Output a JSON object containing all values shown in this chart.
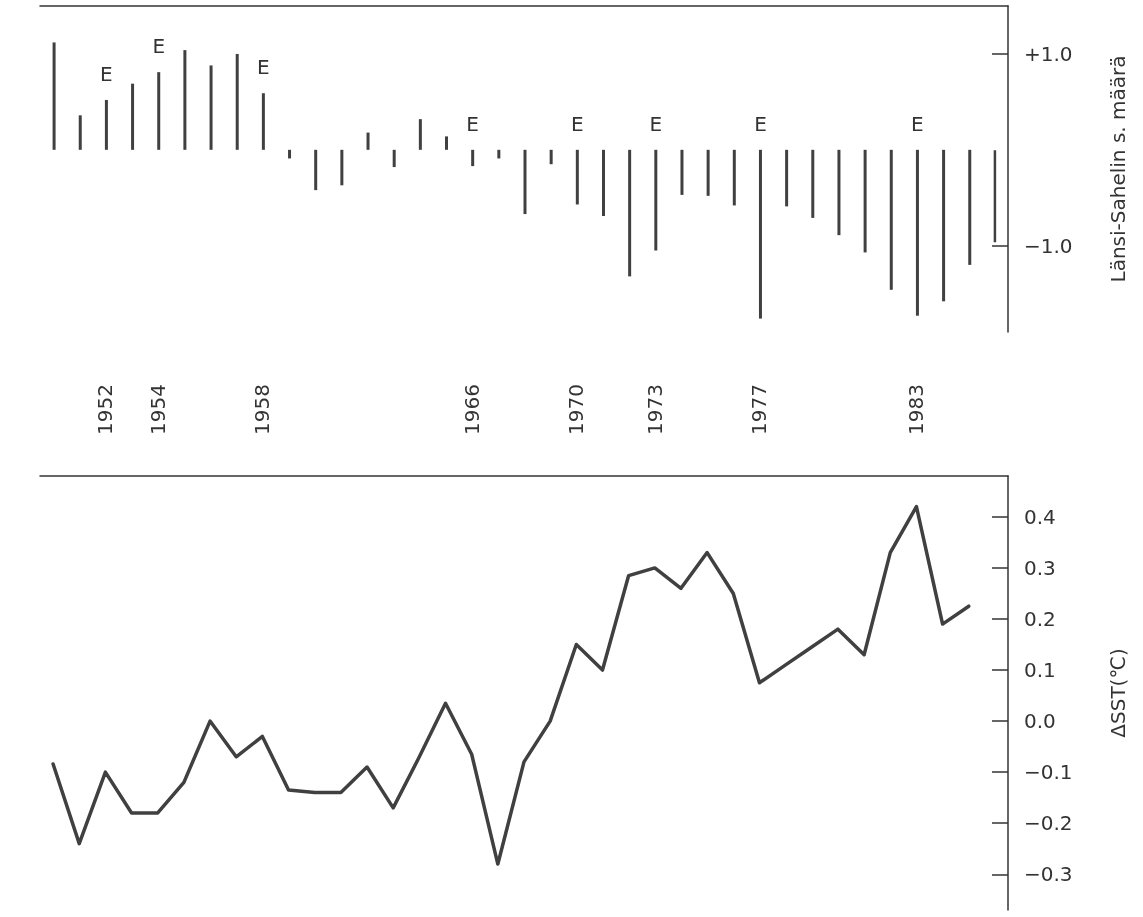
{
  "chart_data": [
    {
      "type": "bar",
      "ylabel": "Länsi-Sahelin s. määrä",
      "categories": [
        null,
        null,
        "1952",
        null,
        "1954",
        null,
        null,
        null,
        "1958",
        null,
        null,
        null,
        null,
        null,
        null,
        null,
        "1966",
        null,
        null,
        null,
        "1970",
        null,
        null,
        "1973",
        null,
        null,
        null,
        "1977",
        null,
        null,
        null,
        null,
        null,
        "1983",
        null,
        null,
        null
      ],
      "series": [
        {
          "color": "#404040",
          "values": [
            1.12,
            0.36,
            0.52,
            0.69,
            0.81,
            1.04,
            0.88,
            1.0,
            0.59,
            -0.09,
            -0.42,
            -0.37,
            0.18,
            -0.18,
            0.32,
            0.14,
            -0.17,
            -0.09,
            -0.67,
            -0.15,
            -0.57,
            -0.69,
            -1.32,
            -1.05,
            -0.47,
            -0.48,
            -0.58,
            -1.76,
            -0.59,
            -0.71,
            -0.89,
            -1.07,
            -1.46,
            -1.73,
            -1.58,
            -1.2,
            null
          ]
        },
        {
          "color": "#404040",
          "line_style": "dashed",
          "values": [
            null,
            null,
            null,
            null,
            null,
            null,
            null,
            null,
            null,
            null,
            null,
            null,
            null,
            null,
            null,
            null,
            null,
            null,
            null,
            null,
            null,
            null,
            null,
            null,
            null,
            null,
            null,
            null,
            null,
            null,
            null,
            null,
            null,
            null,
            null,
            null,
            -0.97
          ]
        }
      ],
      "ylim": [
        -1.9,
        1.5
      ],
      "yticks": [
        {
          "value": 1,
          "label": "+1.0"
        },
        {
          "value": -1,
          "label": "−1.0"
        }
      ],
      "annotations": [
        {
          "text": "E",
          "x": "1952",
          "y": 0.52
        },
        {
          "text": "E",
          "x": "1954",
          "y": 0.81
        },
        {
          "text": "E",
          "x": "1958",
          "y": 0.59
        },
        {
          "text": "E",
          "x": "1966",
          "y": 0
        },
        {
          "text": "E",
          "x": "1970",
          "y": 0
        },
        {
          "text": "E",
          "x": "1973",
          "y": 0
        },
        {
          "text": "E",
          "x": "1977",
          "y": 0
        },
        {
          "text": "E",
          "x": "1983",
          "y": 0
        }
      ]
    },
    {
      "type": "line",
      "ylabel": "ΔSST(℃)",
      "marker": "none",
      "tick_labels": "y",
      "categories": [
        null,
        null,
        null,
        null,
        null,
        null,
        null,
        null,
        null,
        null,
        null,
        null,
        null,
        null,
        null,
        null,
        null,
        null,
        null,
        null,
        null,
        null,
        null,
        null,
        null,
        null,
        null,
        null,
        null,
        null,
        null,
        null,
        null,
        null,
        null,
        null,
        null
      ],
      "series": [
        {
          "color": "#404040",
          "values": [
            -0.084,
            -0.24,
            -0.1,
            -0.18,
            -0.18,
            -0.12,
            0.0,
            -0.07,
            -0.03,
            -0.135,
            -0.14,
            -0.14,
            -0.09,
            -0.17,
            -0.07,
            0.035,
            -0.065,
            -0.28,
            -0.08,
            0.0,
            0.15,
            0.1,
            0.285,
            0.3,
            0.26,
            0.33,
            0.25,
            0.075,
            0.11,
            0.145,
            0.18,
            0.13,
            0.33,
            0.42,
            0.19,
            0.225,
            null
          ]
        }
      ],
      "ylim": [
        -0.37,
        0.48
      ],
      "yticks": [
        {
          "value": -0.3,
          "label": "−0.3"
        },
        {
          "value": -0.2,
          "label": "−0.2"
        },
        {
          "value": -0.1,
          "label": "−0.1"
        },
        {
          "value": 0,
          "label": "0.0"
        },
        0.1,
        0.2,
        0.3,
        0.4
      ]
    }
  ]
}
